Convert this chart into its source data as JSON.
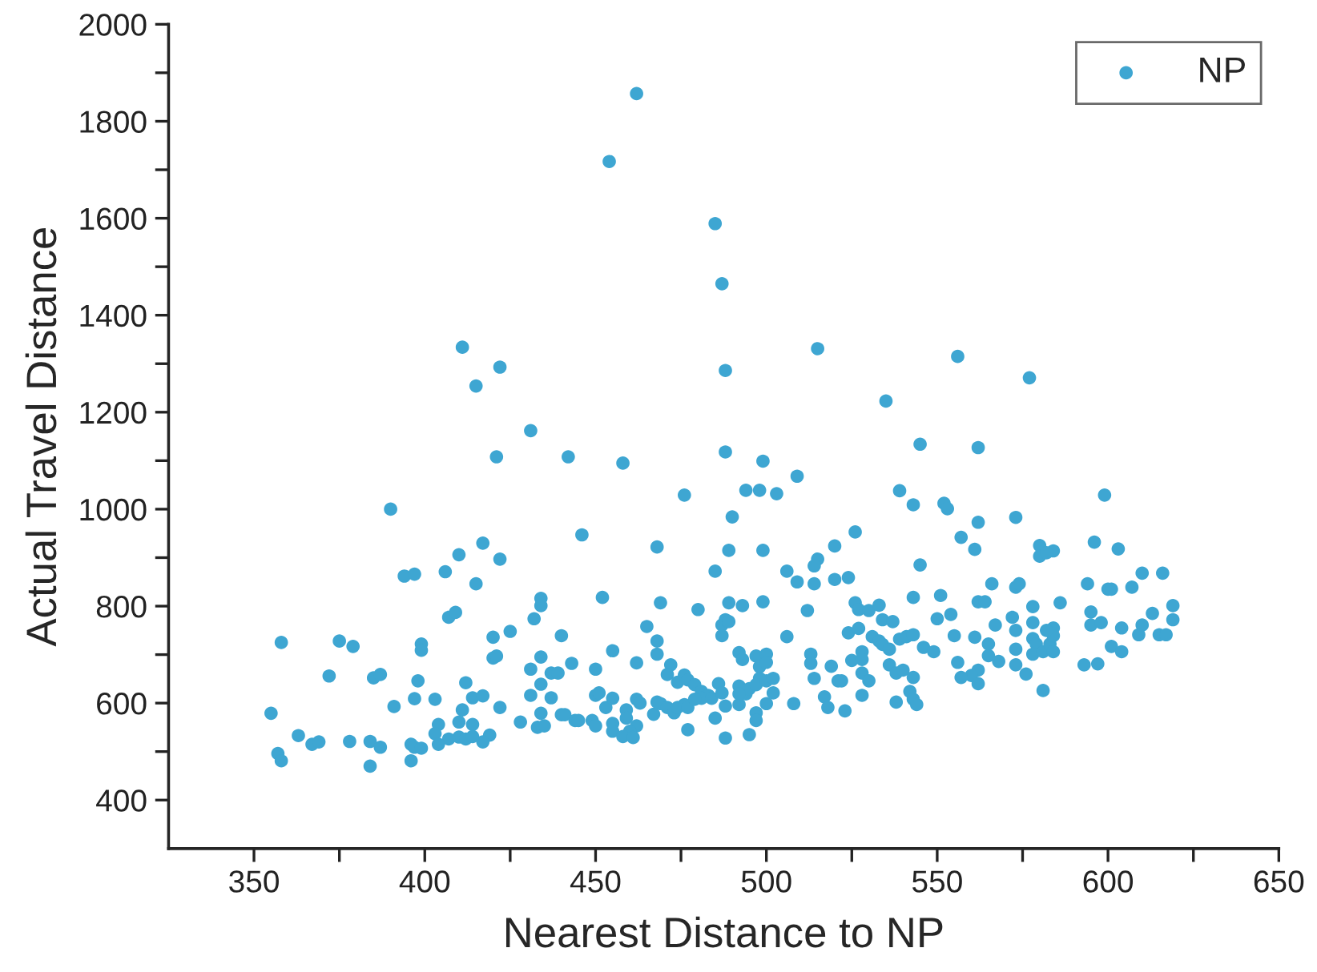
{
  "chart_data": {
    "type": "scatter",
    "xlabel": "Nearest Distance to NP",
    "ylabel": "Actual Travel Distance",
    "xlim": [
      325,
      650
    ],
    "ylim": [
      300,
      2000
    ],
    "xticks": [
      350,
      {
        "value": 375,
        "label": null
      },
      400,
      {
        "value": 425,
        "label": null
      },
      450,
      {
        "value": 475,
        "label": null
      },
      500,
      {
        "value": 525,
        "label": null
      },
      550,
      {
        "value": 575,
        "label": null
      },
      600,
      {
        "value": 625,
        "label": null
      },
      650
    ],
    "yticks": [
      400,
      {
        "value": 500,
        "label": null
      },
      600,
      {
        "value": 700,
        "label": null
      },
      800,
      {
        "value": 900,
        "label": null
      },
      1000,
      {
        "value": 1100,
        "label": null
      },
      1200,
      {
        "value": 1300,
        "label": null
      },
      1400,
      {
        "value": 1500,
        "label": null
      },
      1600,
      {
        "value": 1700,
        "label": null
      },
      1800,
      {
        "value": 1900,
        "label": null
      },
      2000
    ],
    "grid": false,
    "legend": "top right",
    "marker": "circle",
    "series": [
      {
        "name": "NP",
        "color": "#3ea6d2",
        "x": [
          411,
          422,
          415,
          431,
          421,
          442,
          462,
          454,
          485,
          487,
          515,
          556,
          488,
          535,
          545,
          562,
          458,
          488,
          499,
          509,
          577,
          390,
          417,
          422,
          410,
          406,
          394,
          397,
          415,
          407,
          409,
          434,
          434,
          432,
          425,
          420,
          440,
          358,
          375,
          379,
          399,
          399,
          420,
          421,
          434,
          443,
          431,
          437,
          439,
          372,
          385,
          387,
          398,
          412,
          434,
          431,
          414,
          417,
          437,
          397,
          403,
          391,
          422,
          355,
          411,
          434,
          440,
          441,
          444,
          410,
          414,
          404,
          428,
          433,
          435,
          363,
          403,
          410,
          412,
          414,
          419,
          407,
          404,
          417,
          367,
          369,
          378,
          384,
          387,
          396,
          397,
          399,
          357,
          358,
          384,
          396,
          494,
          498,
          503,
          476,
          539,
          543,
          552,
          553,
          562,
          490,
          446,
          468,
          489,
          499,
          526,
          520,
          557,
          561,
          515,
          514,
          545,
          485,
          506,
          509,
          514,
          520,
          524,
          566,
          452,
          551,
          543,
          469,
          480,
          489,
          493,
          499,
          512,
          526,
          527,
          530,
          533,
          534,
          537,
          550,
          554,
          562,
          564,
          567,
          465,
          487,
          488,
          489,
          487,
          524,
          527,
          506,
          531,
          533,
          534,
          536,
          539,
          541,
          543,
          546,
          549,
          555,
          561,
          565,
          565,
          568,
          562,
          560,
          557,
          562,
          556,
          468,
          468,
          455,
          450,
          462,
          472,
          471,
          474,
          476,
          477,
          479,
          481,
          483,
          481,
          484,
          486,
          487,
          488,
          492,
          493,
          492,
          494,
          495,
          492,
          497,
          500,
          498,
          500,
          498,
          497,
          500,
          502,
          502,
          500,
          497,
          497,
          495,
          488,
          485,
          477,
          508,
          513,
          513,
          514,
          519,
          521,
          522,
          517,
          518,
          523,
          525,
          528,
          528,
          528,
          530,
          528,
          536,
          538,
          540,
          538,
          543,
          542,
          543,
          544,
          462,
          463,
          459,
          459,
          462,
          460,
          455,
          455,
          458,
          461,
          450,
          451,
          453,
          455,
          449,
          450,
          445,
          467,
          468,
          469,
          471,
          473,
          474,
          476,
          477,
          479,
          492,
          599,
          573,
          580,
          580,
          584,
          582,
          596,
          603,
          573,
          574,
          594,
          600,
          601,
          607,
          610,
          616,
          578,
          586,
          595,
          595,
          598,
          604,
          610,
          609,
          613,
          615,
          617,
          619,
          619,
          601,
          604,
          593,
          597,
          572,
          573,
          573,
          573,
          576,
          578,
          578,
          579,
          578,
          581,
          583,
          584,
          584,
          584,
          582,
          581
        ],
        "values": [
          1334,
          1293,
          1254,
          1162,
          1108,
          1108,
          1857,
          1717,
          1589,
          1465,
          1331,
          1315,
          1286,
          1223,
          1134,
          1127,
          1095,
          1118,
          1099,
          1068,
          1271,
          1000,
          930,
          897,
          906,
          871,
          862,
          866,
          846,
          777,
          787,
          816,
          801,
          774,
          748,
          736,
          739,
          725,
          728,
          717,
          722,
          709,
          693,
          697,
          695,
          682,
          670,
          662,
          662,
          656,
          652,
          659,
          646,
          642,
          639,
          616,
          611,
          615,
          611,
          609,
          608,
          593,
          591,
          579,
          586,
          579,
          576,
          576,
          564,
          561,
          556,
          556,
          561,
          550,
          553,
          533,
          537,
          530,
          526,
          531,
          534,
          526,
          515,
          520,
          515,
          520,
          521,
          521,
          509,
          515,
          509,
          507,
          496,
          481,
          470,
          481,
          1039,
          1039,
          1032,
          1029,
          1038,
          1009,
          1012,
          1001,
          973,
          984,
          947,
          922,
          915,
          915,
          953,
          924,
          942,
          917,
          897,
          883,
          885,
          872,
          872,
          850,
          846,
          855,
          859,
          846,
          818,
          822,
          818,
          807,
          793,
          807,
          801,
          809,
          791,
          807,
          793,
          791,
          802,
          772,
          768,
          774,
          783,
          809,
          809,
          761,
          758,
          761,
          772,
          768,
          739,
          745,
          754,
          737,
          737,
          728,
          721,
          711,
          732,
          737,
          741,
          715,
          706,
          739,
          736,
          722,
          698,
          686,
          668,
          657,
          653,
          640,
          684,
          728,
          701,
          708,
          670,
          683,
          679,
          659,
          643,
          658,
          648,
          638,
          624,
          616,
          610,
          610,
          640,
          621,
          594,
          704,
          690,
          635,
          619,
          630,
          597,
          697,
          701,
          675,
          684,
          651,
          638,
          646,
          651,
          621,
          599,
          580,
          564,
          535,
          528,
          569,
          545,
          599,
          701,
          682,
          651,
          676,
          646,
          646,
          613,
          591,
          584,
          688,
          706,
          690,
          662,
          646,
          616,
          679,
          662,
          668,
          602,
          653,
          624,
          608,
          597,
          608,
          600,
          586,
          569,
          553,
          542,
          558,
          542,
          531,
          529,
          616,
          621,
          591,
          610,
          564,
          553,
          564,
          577,
          602,
          599,
          591,
          580,
          591,
          597,
          591,
          608,
          619,
          1029,
          983,
          925,
          903,
          914,
          910,
          932,
          918,
          839,
          846,
          846,
          835,
          835,
          839,
          868,
          868,
          799,
          807,
          788,
          761,
          766,
          755,
          761,
          741,
          785,
          741,
          741,
          801,
          772,
          717,
          706,
          679,
          681,
          777,
          750,
          711,
          679,
          660,
          766,
          733,
          722,
          701,
          706,
          722,
          755,
          739,
          706,
          750,
          626
        ]
      }
    ]
  }
}
